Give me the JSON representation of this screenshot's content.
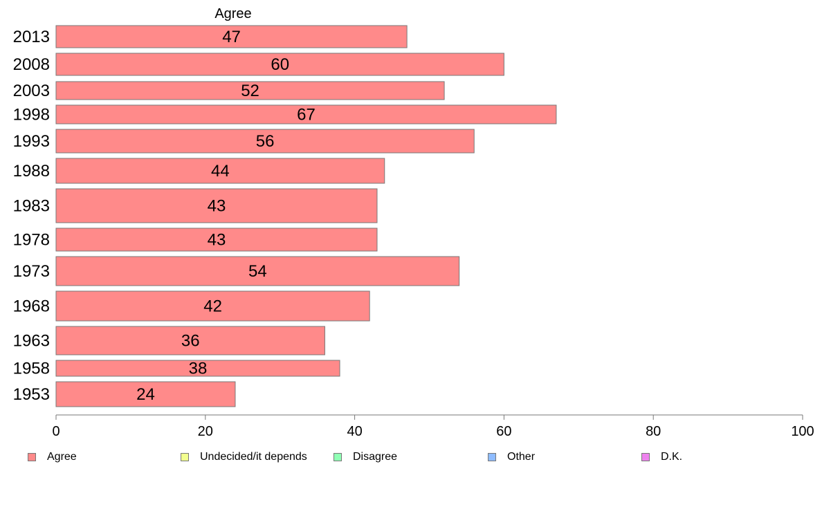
{
  "chart_data": {
    "type": "bar",
    "orientation": "horizontal",
    "title": "Agree",
    "categories": [
      "2013",
      "2008",
      "2003",
      "1998",
      "1993",
      "1988",
      "1983",
      "1978",
      "1973",
      "1968",
      "1963",
      "1958",
      "1953"
    ],
    "series": [
      {
        "name": "Agree",
        "values": [
          47,
          60,
          52,
          67,
          56,
          44,
          43,
          43,
          54,
          42,
          36,
          38,
          24
        ],
        "color": "#ff8a8a"
      }
    ],
    "xlim": [
      0,
      100
    ],
    "xticks": [
      0,
      20,
      40,
      60,
      80,
      100
    ],
    "grid": false,
    "legend_position": "bottom",
    "legend": [
      {
        "label": "Agree",
        "color": "#ff8a8a"
      },
      {
        "label": "Undecided/it depends",
        "color": "#f2ff8f"
      },
      {
        "label": "Disagree",
        "color": "#8fffb4"
      },
      {
        "label": "Other",
        "color": "#8fbcff"
      },
      {
        "label": "D.K.",
        "color": "#ee82ee"
      }
    ]
  }
}
